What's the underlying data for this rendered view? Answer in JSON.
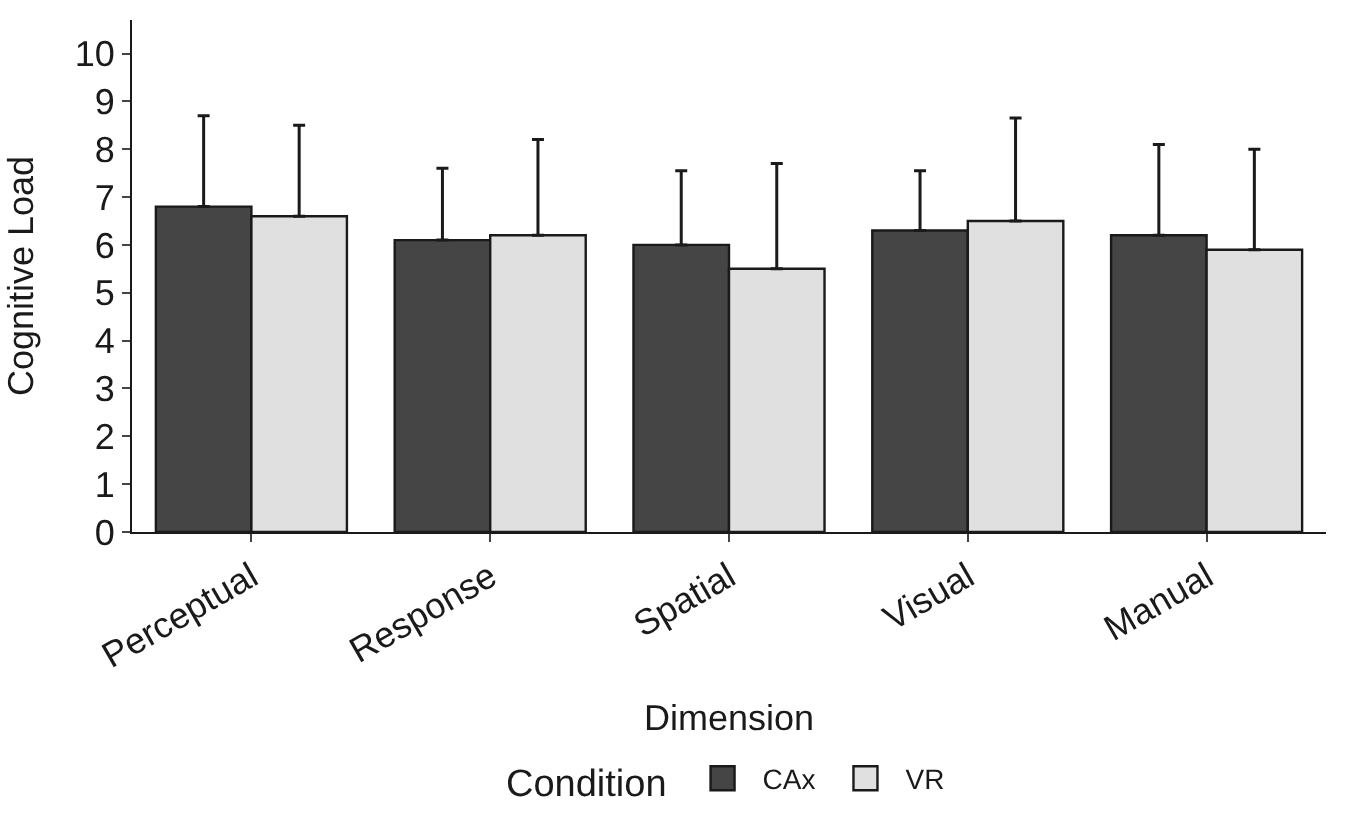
{
  "chart_data": {
    "type": "bar",
    "xlabel": "Dimension",
    "ylabel": "Cognitive Load",
    "legend_title": "Condition",
    "categories": [
      "Perceptual",
      "Response",
      "Spatial",
      "Visual",
      "Manual"
    ],
    "series": [
      {
        "name": "CAx",
        "color": "#454545",
        "values": [
          6.8,
          6.1,
          6.0,
          6.3,
          6.2
        ],
        "errors": [
          [
            6.8,
            8.7
          ],
          [
            6.1,
            7.6
          ],
          [
            6.0,
            7.55
          ],
          [
            6.3,
            7.55
          ],
          [
            6.2,
            8.1
          ]
        ]
      },
      {
        "name": "VR",
        "color": "#e0e0e0",
        "values": [
          6.6,
          6.2,
          5.5,
          6.5,
          5.9
        ],
        "errors": [
          [
            6.6,
            8.5
          ],
          [
            6.2,
            8.2
          ],
          [
            5.5,
            7.7
          ],
          [
            6.5,
            8.65
          ],
          [
            5.9,
            8.0
          ]
        ]
      }
    ],
    "ylim": [
      0,
      10.7
    ],
    "yticks": [
      0,
      1,
      2,
      3,
      4,
      5,
      6,
      7,
      8,
      9,
      10
    ],
    "legend": "bottom"
  }
}
